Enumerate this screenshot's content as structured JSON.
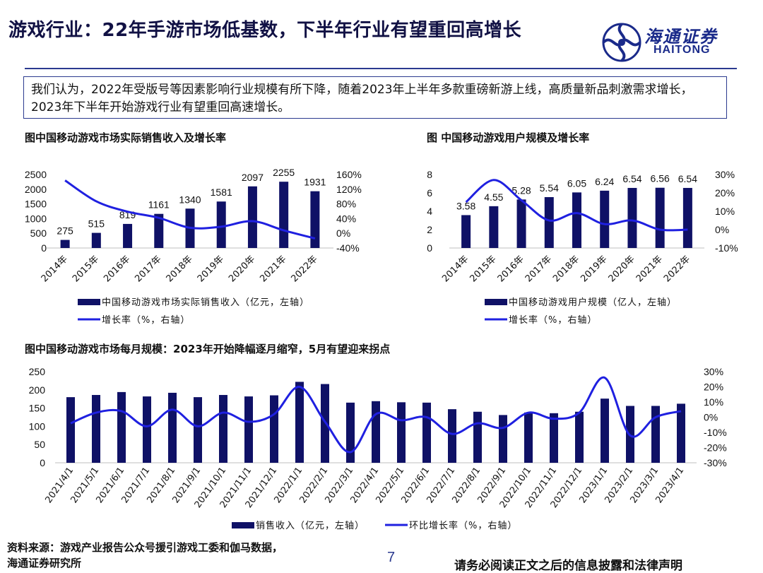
{
  "header": {
    "title": "游戏行业：22年手游市场低基数，下半年行业有望重回高增长",
    "logo_cn": "海通证券",
    "logo_en": "HAITONG"
  },
  "summary": "我们认为，2022年受版号等因素影响行业规模有所下降，随着2023年上半年多款重磅新游上线，高质量新品刺激需求增长，2023年下半年开始游戏行业有望重回高速增长。",
  "chart_data": [
    {
      "type": "bar",
      "title": "图中国移动游戏市场实际销售收入及增长率",
      "categories": [
        "2014年",
        "2015年",
        "2016年",
        "2017年",
        "2018年",
        "2019年",
        "2020年",
        "2021年",
        "2022年"
      ],
      "series": [
        {
          "name": "中国移动游戏市场实际销售收入（亿元，左轴）",
          "type": "bar",
          "axis": "left",
          "values": [
            275,
            515,
            819,
            1161,
            1340,
            1581,
            2097,
            2255,
            1931
          ]
        },
        {
          "name": "增长率（%，右轴）",
          "type": "line",
          "axis": "right",
          "values": [
            144,
            87,
            59,
            42,
            15,
            18,
            33,
            8,
            -14
          ]
        }
      ],
      "ylim_left": [
        0,
        2500
      ],
      "yticks_left": [
        "0",
        "500",
        "1000",
        "1500",
        "2000",
        "2500"
      ],
      "ylim_right": [
        -40,
        160
      ],
      "yticks_right": [
        "-40%",
        "0%",
        "40%",
        "80%",
        "120%",
        "160%"
      ],
      "data_labels": [
        "275",
        "515",
        "819",
        "1161",
        "1340",
        "1581",
        "2097",
        "2255",
        "1931"
      ],
      "legend_position": "bottom"
    },
    {
      "type": "bar",
      "title": "图 中国移动游戏用户规模及增长率",
      "categories": [
        "2014年",
        "2015年",
        "2016年",
        "2017年",
        "2018年",
        "2019年",
        "2020年",
        "2021年",
        "2022年"
      ],
      "series": [
        {
          "name": "中国移动游戏用户规模（亿人，左轴）",
          "type": "bar",
          "axis": "left",
          "values": [
            3.58,
            4.55,
            5.28,
            5.54,
            6.05,
            6.24,
            6.54,
            6.56,
            6.54
          ]
        },
        {
          "name": "增长率（%，右轴）",
          "type": "line",
          "axis": "right",
          "values": [
            15,
            27,
            16,
            5,
            9,
            3,
            5,
            0,
            0
          ]
        }
      ],
      "ylim_left": [
        0,
        8
      ],
      "yticks_left": [
        "0",
        "2",
        "4",
        "6",
        "8"
      ],
      "ylim_right": [
        -10,
        30
      ],
      "yticks_right": [
        "-10%",
        "0%",
        "10%",
        "20%",
        "30%"
      ],
      "data_labels": [
        "3.58",
        "4.55",
        "5.28",
        "5.54",
        "6.05",
        "6.24",
        "6.54",
        "6.56",
        "6.54"
      ],
      "legend_position": "bottom"
    },
    {
      "type": "bar",
      "title": "图中国移动游戏市场每月规模：2023年开始降幅逐月缩窄，5月有望迎来拐点",
      "categories": [
        "2021/4/1",
        "2021/5/1",
        "2021/6/1",
        "2021/7/1",
        "2021/8/1",
        "2021/9/1",
        "2021/10/1",
        "2021/11/1",
        "2021/12/1",
        "2022/1/1",
        "2022/2/1",
        "2022/3/1",
        "2022/4/1",
        "2022/5/1",
        "2022/6/1",
        "2022/7/1",
        "2022/8/1",
        "2022/9/1",
        "2022/10/1",
        "2022/11/1",
        "2022/12/1",
        "2023/1/1",
        "2023/2/1",
        "2023/3/1",
        "2023/4/1"
      ],
      "series": [
        {
          "name": "销售收入（亿元，左轴）",
          "type": "bar",
          "axis": "left",
          "values": [
            180,
            186,
            194,
            182,
            192,
            180,
            186,
            182,
            185,
            222,
            216,
            165,
            169,
            166,
            165,
            147,
            140,
            131,
            138,
            136,
            140,
            176,
            156,
            156,
            162
          ]
        },
        {
          "name": "环比增长率（%，右轴）",
          "type": "line",
          "axis": "right",
          "values": [
            -4,
            3,
            4,
            -6,
            5,
            -6,
            3,
            -3,
            2,
            20,
            -3,
            -23,
            2,
            -2,
            0,
            -11,
            -4,
            -7,
            3,
            -1,
            3,
            26,
            -12,
            0,
            4
          ]
        }
      ],
      "ylim_left": [
        0,
        250
      ],
      "yticks_left": [
        "0",
        "50",
        "100",
        "150",
        "200",
        "250"
      ],
      "ylim_right": [
        -30,
        30
      ],
      "yticks_right": [
        "-30%",
        "-20%",
        "-10%",
        "0%",
        "10%",
        "20%",
        "30%"
      ],
      "legend_position": "bottom"
    }
  ],
  "footer": {
    "source_line1": "资料来源：游戏产业报告公众号援引游戏工委和伽马数据，",
    "source_line2": "海通证券研究所",
    "page_number": "7",
    "disclaimer": "请务必阅读正文之后的信息披露和法律声明"
  },
  "colors": {
    "bar": "#0f1166",
    "line": "#1f20e0",
    "accent": "#2b3a8f"
  }
}
